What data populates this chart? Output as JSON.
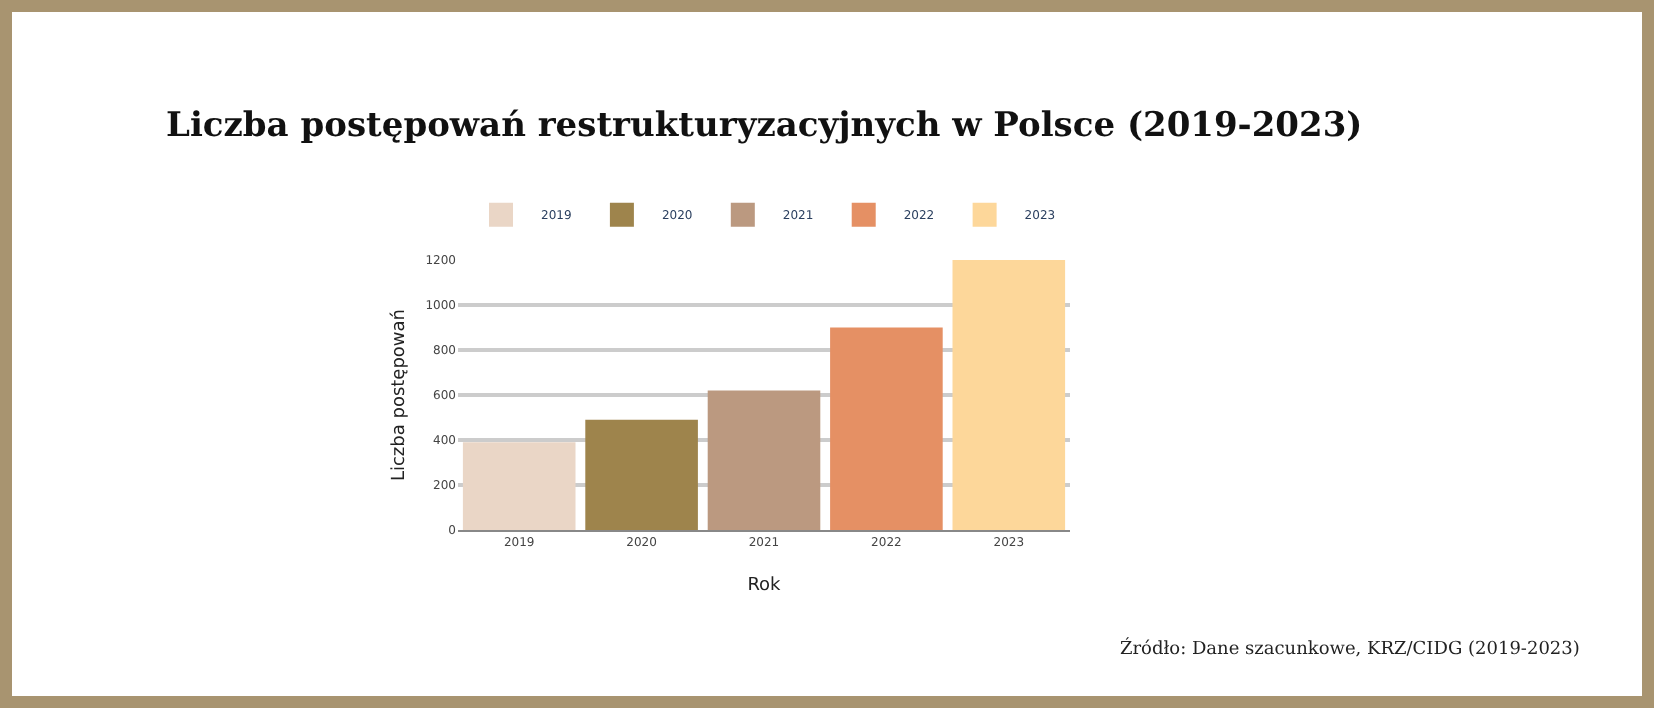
{
  "chart_data": {
    "type": "bar",
    "title": "Liczba postępowań restrukturyzacyjnych w Polsce (2019-2023)",
    "xlabel": "Rok",
    "ylabel": "Liczba postępowań",
    "categories": [
      "2019",
      "2020",
      "2021",
      "2022",
      "2023"
    ],
    "series": [
      {
        "name": "2019",
        "color": "#ead6c6",
        "values": [
          390,
          null,
          null,
          null,
          null
        ]
      },
      {
        "name": "2020",
        "color": "#9e844c",
        "values": [
          null,
          490,
          null,
          null,
          null
        ]
      },
      {
        "name": "2021",
        "color": "#bb9980",
        "values": [
          null,
          null,
          620,
          null,
          null
        ]
      },
      {
        "name": "2022",
        "color": "#e59064",
        "values": [
          null,
          null,
          null,
          900,
          null
        ]
      },
      {
        "name": "2023",
        "color": "#fdd79a",
        "values": [
          null,
          null,
          null,
          null,
          1200
        ]
      }
    ],
    "ylim": [
      0,
      1200
    ],
    "yticks": [
      0,
      200,
      400,
      600,
      800,
      1000,
      1200
    ],
    "grid": "y",
    "legend": "top",
    "annotations": [
      "Źródło: Dane szacunkowe, KRZ/CIDG (2019-2023)"
    ]
  }
}
